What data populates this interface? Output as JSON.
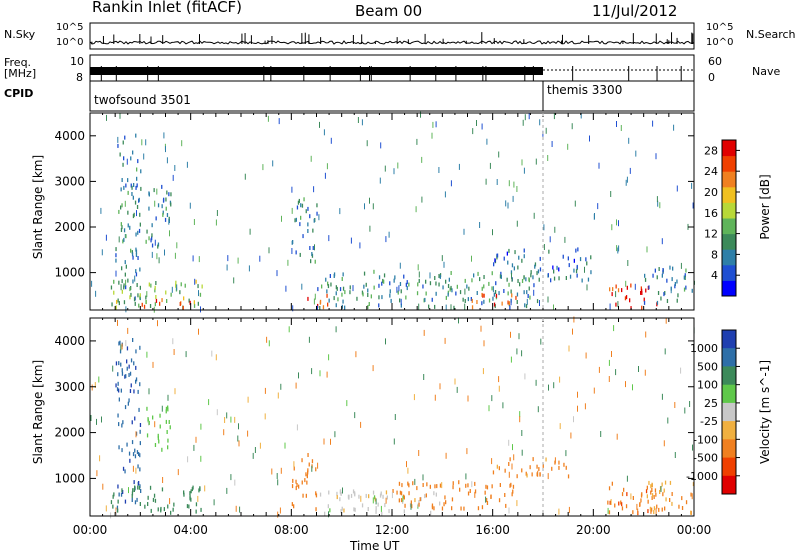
{
  "header": {
    "station": "Rankin Inlet (fitACF)",
    "beam": "Beam 00",
    "date": "11/Jul/2012"
  },
  "top_panels": {
    "nsky_label": "N.Sky",
    "nsky_ticks": [
      "10^5",
      "10^0"
    ],
    "freq_label_line1": "Freq.",
    "freq_label_line2": "[MHz]",
    "freq_ticks": [
      "10",
      "8"
    ],
    "nsearch_label": "N.Search",
    "nsearch_ticks": [
      "10^5",
      "10^0"
    ],
    "nave_label": "Nave",
    "nave_ticks": [
      "60",
      "0"
    ],
    "cpid_label": "CPID",
    "modes": [
      {
        "name": "twofsound 3501",
        "start_hour": 0.0
      },
      {
        "name": "themis 3300",
        "start_hour": 18.0
      }
    ]
  },
  "chart_data": [
    {
      "type": "heatmap",
      "quantity": "Power",
      "ylabel": "Slant Range [km]",
      "xlabel": "",
      "xlim_hours": [
        0,
        24
      ],
      "ylim": [
        180,
        4500
      ],
      "xticks": [
        0,
        4,
        8,
        12,
        16,
        20,
        24
      ],
      "yticks": [
        1000,
        2000,
        3000,
        4000
      ],
      "colorbar": {
        "label": "Power [dB]",
        "ticks": [
          "4",
          "8",
          "12",
          "16",
          "20",
          "24",
          "28"
        ],
        "range": [
          0,
          30
        ],
        "colors": [
          "#0000ff",
          "#1f4fd2",
          "#2e7fa8",
          "#3c8a5a",
          "#5fb45a",
          "#b8d838",
          "#f0c020",
          "#f08020",
          "#f04000",
          "#e00000"
        ]
      },
      "regions": [
        {
          "t0": 1.0,
          "t1": 2.0,
          "r0": 300,
          "r1": 4000,
          "level": 8
        },
        {
          "t0": 2.2,
          "t1": 3.2,
          "r0": 1500,
          "r1": 3000,
          "level": 8
        },
        {
          "t0": 0.8,
          "t1": 4.5,
          "r0": 200,
          "r1": 800,
          "level": 14
        },
        {
          "t0": 2.0,
          "t1": 4.0,
          "r0": 200,
          "r1": 400,
          "level": 26
        },
        {
          "t0": 8.0,
          "t1": 9.0,
          "r0": 1200,
          "r1": 2600,
          "level": 8
        },
        {
          "t0": 8.5,
          "t1": 9.5,
          "r0": 200,
          "r1": 500,
          "level": 24
        },
        {
          "t0": 9.0,
          "t1": 18.0,
          "r0": 200,
          "r1": 1000,
          "level": 10
        },
        {
          "t0": 15.0,
          "t1": 17.0,
          "r0": 200,
          "r1": 500,
          "level": 26
        },
        {
          "t0": 16.0,
          "t1": 20.0,
          "r0": 800,
          "r1": 1500,
          "level": 7
        },
        {
          "t0": 20.5,
          "t1": 22.5,
          "r0": 200,
          "r1": 700,
          "level": 28
        },
        {
          "t0": 22.0,
          "t1": 24.0,
          "r0": 300,
          "r1": 1100,
          "level": 8
        }
      ]
    },
    {
      "type": "heatmap",
      "quantity": "Velocity",
      "ylabel": "Slant Range [km]",
      "xlabel": "Time UT",
      "xlim_hours": [
        0,
        24
      ],
      "ylim": [
        180,
        4500
      ],
      "xticks": [
        0,
        4,
        8,
        12,
        16,
        20,
        24
      ],
      "xticklabels": [
        "00:00",
        "04:00",
        "08:00",
        "12:00",
        "16:00",
        "20:00",
        "00:00"
      ],
      "yticks": [
        1000,
        2000,
        3000,
        4000
      ],
      "colorbar": {
        "label": "Velocity [m s^-1]",
        "ticks": [
          "1000",
          "500",
          "100",
          "25",
          "-25",
          "-100",
          "-500",
          "-1000"
        ],
        "colors": [
          "#1f3fb0",
          "#2e6fa8",
          "#3c8a5a",
          "#5fc84a",
          "#c8c8c8",
          "#f0b040",
          "#f08020",
          "#f04000",
          "#e00000"
        ]
      },
      "regions": [
        {
          "t0": 1.0,
          "t1": 2.0,
          "r0": 300,
          "r1": 4000,
          "level": 800
        },
        {
          "t0": 2.2,
          "t1": 3.2,
          "r0": 1500,
          "r1": 2600,
          "level": 50
        },
        {
          "t0": 0.8,
          "t1": 4.5,
          "r0": 200,
          "r1": 800,
          "level": 200
        },
        {
          "t0": 8.0,
          "t1": 9.0,
          "r0": 300,
          "r1": 1500,
          "level": -200
        },
        {
          "t0": 9.0,
          "t1": 14.0,
          "r0": 200,
          "r1": 700,
          "level": 0
        },
        {
          "t0": 12.0,
          "t1": 17.0,
          "r0": 300,
          "r1": 900,
          "level": -200
        },
        {
          "t0": 16.0,
          "t1": 19.0,
          "r0": 1000,
          "r1": 1400,
          "level": -150
        },
        {
          "t0": 20.5,
          "t1": 22.5,
          "r0": 200,
          "r1": 1000,
          "level": -400
        },
        {
          "t0": 22.0,
          "t1": 24.0,
          "r0": 200,
          "r1": 900,
          "level": -100
        }
      ]
    }
  ]
}
